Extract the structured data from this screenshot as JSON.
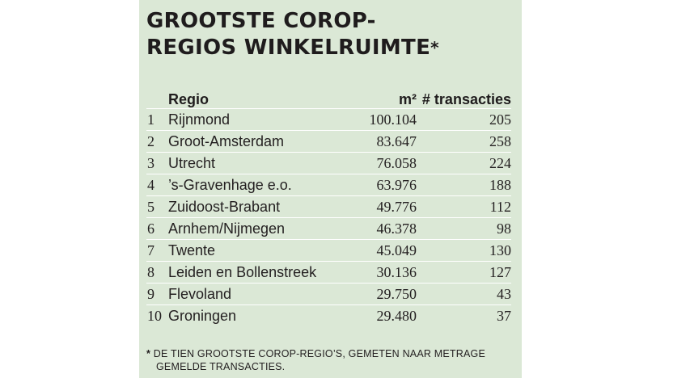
{
  "title": {
    "line1": "GROOTSTE COROP-",
    "line2": "REGIOS WINKELRUIMTE",
    "asterisk": "*"
  },
  "table": {
    "headers": {
      "region": "Regio",
      "m2": "m²",
      "transactions": "# transacties"
    },
    "rows": [
      {
        "rank": "1",
        "region": "Rijnmond",
        "m2": "100.104",
        "transactions": "205"
      },
      {
        "rank": "2",
        "region": "Groot-Amsterdam",
        "m2": "83.647",
        "transactions": "258"
      },
      {
        "rank": "3",
        "region": "Utrecht",
        "m2": "76.058",
        "transactions": "224"
      },
      {
        "rank": "4",
        "region": "’s-Gravenhage e.o.",
        "m2": "63.976",
        "transactions": "188"
      },
      {
        "rank": "5",
        "region": "Zuidoost-Brabant",
        "m2": "49.776",
        "transactions": "112"
      },
      {
        "rank": "6",
        "region": "Arnhem/Nijmegen",
        "m2": "46.378",
        "transactions": "98"
      },
      {
        "rank": "7",
        "region": "Twente",
        "m2": "45.049",
        "transactions": "130"
      },
      {
        "rank": "8",
        "region": "Leiden en Bollenstreek",
        "m2": "30.136",
        "transactions": "127"
      },
      {
        "rank": "9",
        "region": "Flevoland",
        "m2": "29.750",
        "transactions": "43"
      },
      {
        "rank": "10",
        "region": "Groningen",
        "m2": "29.480",
        "transactions": "37"
      }
    ]
  },
  "footnote": {
    "star": "*",
    "line1": "DE TIEN GROOTSTE COROP-REGIO’S, GEMETEN NAAR METRAGE",
    "line2": "GEMELDE TRANSACTIES."
  },
  "colors": {
    "panel_background": "#dbe8d6",
    "text": "#231f20",
    "row_divider": "#ffffff"
  }
}
